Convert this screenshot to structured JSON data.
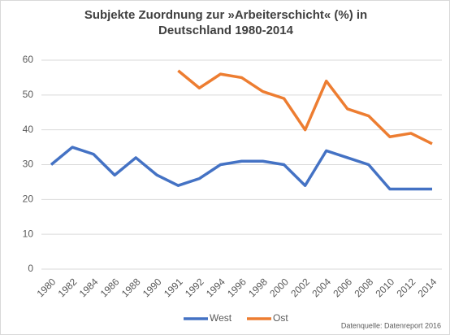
{
  "chart_data": {
    "type": "line",
    "title": "Subjekte Zuordnung zur »Arbeiterschicht« (%) in Deutschland 1980-2014",
    "categories": [
      "1980",
      "1982",
      "1984",
      "1986",
      "1988",
      "1990",
      "1991",
      "1992",
      "1994",
      "1996",
      "1998",
      "2000",
      "2002",
      "2004",
      "2006",
      "2008",
      "2010",
      "2012",
      "2014"
    ],
    "series": [
      {
        "name": "West",
        "color": "#4472c4",
        "values": [
          30,
          35,
          33,
          27,
          32,
          27,
          24,
          26,
          30,
          31,
          31,
          30,
          24,
          34,
          32,
          30,
          23,
          23,
          23
        ]
      },
      {
        "name": "Ost",
        "color": "#ed7d31",
        "values": [
          null,
          null,
          null,
          null,
          null,
          null,
          57,
          52,
          56,
          55,
          51,
          49,
          40,
          54,
          46,
          44,
          38,
          39,
          36
        ]
      }
    ],
    "ylim": [
      0,
      60
    ],
    "yticks": [
      0,
      10,
      20,
      30,
      40,
      50,
      60
    ],
    "grid": true,
    "legend": "bottom",
    "source": "Datenquelle: Datenreport 2016"
  }
}
